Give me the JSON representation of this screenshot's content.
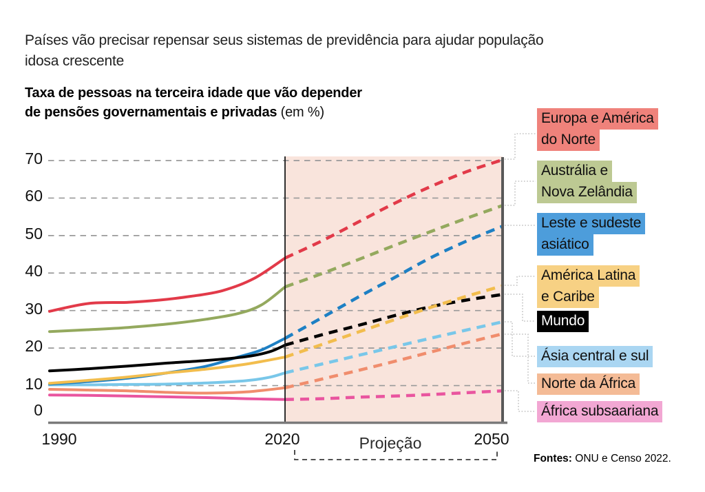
{
  "header": {
    "title_lines": [
      "Países vão precisar repensar seus sistemas de previdência para ajudar população",
      "idosa crescente"
    ]
  },
  "chart_title": {
    "bold_lines": [
      "Taxa de pessoas na terceira idade que vão depender",
      "de pensões governamentais e privadas"
    ],
    "suffix": "(em %)"
  },
  "axes": {
    "y_ticks": [
      "70",
      "60",
      "50",
      "40",
      "30",
      "20",
      "10",
      "0"
    ],
    "x_ticks": [
      "1990",
      "2020",
      "2050"
    ]
  },
  "annotations": {
    "projection_label": "Projeção"
  },
  "source": {
    "label": "Fontes:",
    "text": "ONU e Censo 2022."
  },
  "palette": {
    "band": "#f9e4dc",
    "grid": "#999999",
    "axis": "#7a7a7a",
    "plot_edge": "#595959",
    "divider": "#1a1a1a",
    "leader": "#b3b3b3",
    "bracket": "#3a3a3a"
  },
  "chart_data": {
    "type": "line",
    "title": "Taxa de pessoas na terceira idade que vão depender de pensões governamentais e privadas (em %)",
    "xlabel": "",
    "ylabel": "",
    "xlim": [
      1990,
      2050
    ],
    "ylim": [
      0,
      70
    ],
    "grid": true,
    "legend_position": "right",
    "projection_start": 2020,
    "projection_end": 2050,
    "series": [
      {
        "id": "europa",
        "name": "Europa e América do Norte",
        "label_lines": [
          "Europa e América",
          "do Norte"
        ],
        "line_color": "#e23a49",
        "label_bg": "#ef827b",
        "label_text": "#101010",
        "solid": [
          [
            1990,
            29.8
          ],
          [
            1995,
            31.9
          ],
          [
            2000,
            32.2
          ],
          [
            2004,
            32.8
          ],
          [
            2008,
            33.8
          ],
          [
            2012,
            35.3
          ],
          [
            2016,
            38.5
          ],
          [
            2020,
            44
          ]
        ],
        "dashed": [
          [
            2020,
            44
          ],
          [
            2025,
            48.5
          ],
          [
            2030,
            53.5
          ],
          [
            2035,
            58.5
          ],
          [
            2040,
            63
          ],
          [
            2045,
            67
          ],
          [
            2050,
            70.2
          ]
        ]
      },
      {
        "id": "australia",
        "name": "Austrália e Nova Zelândia",
        "label_lines": [
          "Austrália e",
          "Nova Zelândia"
        ],
        "line_color": "#94a95e",
        "label_bg": "#bdc993",
        "label_text": "#101010",
        "solid": [
          [
            1990,
            24.4
          ],
          [
            1995,
            24.9
          ],
          [
            2000,
            25.5
          ],
          [
            2005,
            26.4
          ],
          [
            2010,
            27.7
          ],
          [
            2014,
            29.2
          ],
          [
            2017,
            31.5
          ],
          [
            2020,
            36.3
          ]
        ],
        "dashed": [
          [
            2020,
            36.3
          ],
          [
            2025,
            39.8
          ],
          [
            2030,
            43.5
          ],
          [
            2035,
            47.3
          ],
          [
            2040,
            51
          ],
          [
            2045,
            54.6
          ],
          [
            2050,
            58
          ]
        ]
      },
      {
        "id": "leste",
        "name": "Leste e sudeste asiático",
        "label_lines": [
          "Leste e sudeste",
          "asiático"
        ],
        "line_color": "#1e80c4",
        "label_bg": "#4d9ddb",
        "label_text": "#101010",
        "solid": [
          [
            1990,
            10.4
          ],
          [
            1995,
            11.1
          ],
          [
            2000,
            12
          ],
          [
            2005,
            13.4
          ],
          [
            2010,
            15.2
          ],
          [
            2014,
            17.6
          ],
          [
            2017,
            19.5
          ],
          [
            2020,
            22.6
          ]
        ],
        "dashed": [
          [
            2020,
            22.6
          ],
          [
            2025,
            28
          ],
          [
            2030,
            33.5
          ],
          [
            2035,
            38.7
          ],
          [
            2040,
            44
          ],
          [
            2045,
            48.5
          ],
          [
            2050,
            52.5
          ]
        ]
      },
      {
        "id": "latina",
        "name": "América Latina e Caribe",
        "label_lines": [
          "América Latina",
          "e Caribe"
        ],
        "line_color": "#f2bd4d",
        "label_bg": "#f7d184",
        "label_text": "#101010",
        "solid": [
          [
            1990,
            10.6
          ],
          [
            1995,
            11.4
          ],
          [
            2000,
            12.3
          ],
          [
            2005,
            13.4
          ],
          [
            2010,
            14.4
          ],
          [
            2015,
            15.7
          ],
          [
            2020,
            17.6
          ]
        ],
        "dashed": [
          [
            2020,
            17.6
          ],
          [
            2025,
            20.9
          ],
          [
            2030,
            24.2
          ],
          [
            2035,
            27.5
          ],
          [
            2040,
            30.8
          ],
          [
            2045,
            33.8
          ],
          [
            2050,
            36.6
          ]
        ]
      },
      {
        "id": "mundo",
        "name": "Mundo",
        "label_lines": [
          "Mundo"
        ],
        "line_color": "#000000",
        "label_bg": "#000000",
        "label_text": "#ffffff",
        "solid": [
          [
            1990,
            13.9
          ],
          [
            1995,
            14.5
          ],
          [
            2000,
            15.2
          ],
          [
            2005,
            16
          ],
          [
            2010,
            16.7
          ],
          [
            2015,
            17.7
          ],
          [
            2018,
            19
          ],
          [
            2020,
            20.8
          ]
        ],
        "dashed": [
          [
            2020,
            20.8
          ],
          [
            2025,
            23.5
          ],
          [
            2030,
            26
          ],
          [
            2035,
            28.6
          ],
          [
            2040,
            31
          ],
          [
            2045,
            32.8
          ],
          [
            2050,
            34.3
          ]
        ]
      },
      {
        "id": "asia_central",
        "name": "Ásia central e sul",
        "label_lines": [
          "Ásia central e sul"
        ],
        "line_color": "#79c7e9",
        "label_bg": "#aad6f2",
        "label_text": "#101010",
        "solid": [
          [
            1990,
            10.2
          ],
          [
            1995,
            10.2
          ],
          [
            2000,
            10.3
          ],
          [
            2005,
            10.4
          ],
          [
            2010,
            10.7
          ],
          [
            2015,
            11.3
          ],
          [
            2018,
            12.2
          ],
          [
            2020,
            13.4
          ]
        ],
        "dashed": [
          [
            2020,
            13.4
          ],
          [
            2025,
            15.7
          ],
          [
            2030,
            18
          ],
          [
            2035,
            20.3
          ],
          [
            2040,
            22.6
          ],
          [
            2045,
            24.8
          ],
          [
            2050,
            27
          ]
        ]
      },
      {
        "id": "norte_africa",
        "name": "Norte da África",
        "label_lines": [
          "Norte da África"
        ],
        "line_color": "#f08d6d",
        "label_bg": "#f4bb96",
        "label_text": "#101010",
        "solid": [
          [
            1990,
            9
          ],
          [
            1995,
            8.8
          ],
          [
            2000,
            8.6
          ],
          [
            2005,
            8.2
          ],
          [
            2010,
            8
          ],
          [
            2015,
            8.3
          ],
          [
            2020,
            9.4
          ]
        ],
        "dashed": [
          [
            2020,
            9.4
          ],
          [
            2025,
            11.7
          ],
          [
            2030,
            14
          ],
          [
            2035,
            16.4
          ],
          [
            2040,
            18.9
          ],
          [
            2045,
            21.4
          ],
          [
            2050,
            23.8
          ]
        ]
      },
      {
        "id": "africa_sub",
        "name": "África subsaariana",
        "label_lines": [
          "África subsaariana"
        ],
        "line_color": "#e9559f",
        "label_bg": "#f2a7d3",
        "label_text": "#101010",
        "solid": [
          [
            1990,
            7.5
          ],
          [
            1995,
            7.4
          ],
          [
            2000,
            7.2
          ],
          [
            2005,
            7
          ],
          [
            2010,
            6.8
          ],
          [
            2015,
            6.5
          ],
          [
            2020,
            6.3
          ]
        ],
        "dashed": [
          [
            2020,
            6.3
          ],
          [
            2025,
            6.5
          ],
          [
            2030,
            6.9
          ],
          [
            2035,
            7.2
          ],
          [
            2040,
            7.6
          ],
          [
            2045,
            8.1
          ],
          [
            2050,
            8.6
          ]
        ]
      }
    ]
  }
}
